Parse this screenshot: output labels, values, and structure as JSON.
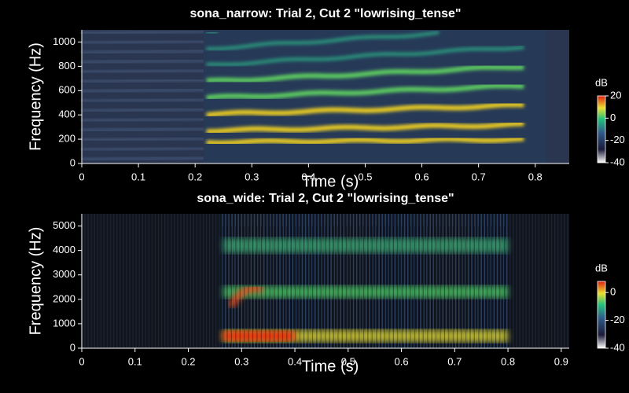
{
  "chart_data": [
    {
      "type": "spectrogram",
      "title": "sona_narrow: Trial 2, Cut 2 \"lowrising_tense\"",
      "xlabel": "Time (s)",
      "ylabel": "Frequency (Hz)",
      "xlim": [
        0,
        0.86
      ],
      "ylim": [
        0,
        1100
      ],
      "xticks": [
        0,
        0.1,
        0.2,
        0.3,
        0.4,
        0.5,
        0.6,
        0.7,
        0.8
      ],
      "yticks": [
        0,
        200,
        400,
        600,
        800,
        1000
      ],
      "colorbar": {
        "label": "dB",
        "lim": [
          -40,
          20
        ],
        "ticks": [
          -40,
          -20,
          0,
          20
        ]
      }
    },
    {
      "type": "spectrogram",
      "title": "sona_wide: Trial 2, Cut 2 \"lowrising_tense\"",
      "xlabel": "Time (s)",
      "ylabel": "Frequency (Hz)",
      "xlim": [
        0,
        0.915
      ],
      "ylim": [
        0,
        5500
      ],
      "xticks": [
        0,
        0.1,
        0.2,
        0.3,
        0.4,
        0.5,
        0.6,
        0.7,
        0.8,
        0.9
      ],
      "yticks": [
        0,
        1000,
        2000,
        3000,
        4000,
        5000
      ],
      "colorbar": {
        "label": "dB",
        "lim": [
          -40,
          8
        ],
        "ticks": [
          -40,
          -20,
          0
        ]
      }
    }
  ]
}
